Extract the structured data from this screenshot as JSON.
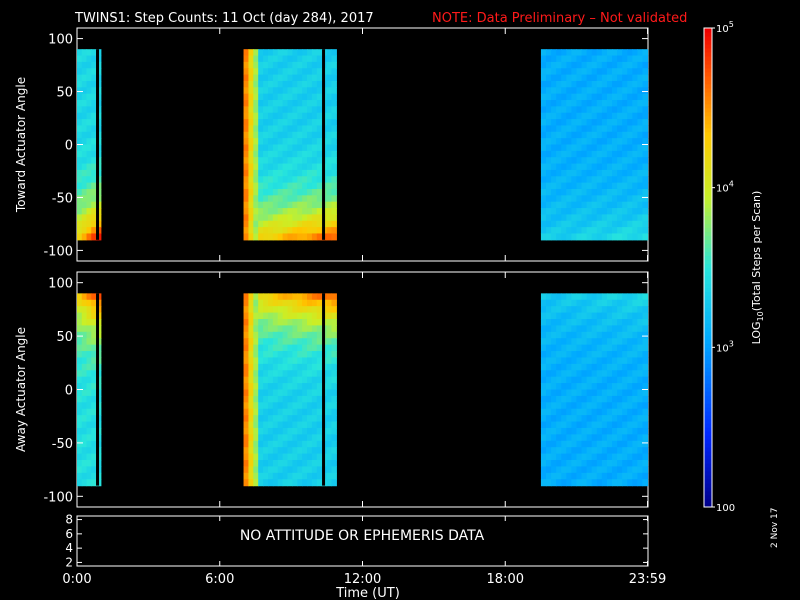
{
  "title": "TWINS1: Step Counts: 11 Oct (day 284), 2017",
  "note": "NOTE: Data Preliminary – Not validated",
  "side_date": "2 Nov 17",
  "colors": {
    "background": "#000000",
    "text": "#ffffff",
    "note": "#ff1a1a",
    "axis": "#ffffff"
  },
  "chart_data": [
    {
      "id": "toward",
      "type": "heatmap",
      "ylabel": "Toward Actuator Angle",
      "ylim": [
        -110,
        110
      ],
      "yticks": [
        100,
        50,
        0,
        -50,
        -100
      ],
      "xlim": [
        0,
        24
      ],
      "data_blocks": [
        {
          "start": 0.0,
          "end": 1.0,
          "base": 0.46,
          "ramp_to": "low",
          "ramp_strength": 0.5
        },
        {
          "start": 7.0,
          "end": 10.9,
          "base": 0.44,
          "ramp_to": "low",
          "ramp_strength": 0.45
        },
        {
          "start": 19.5,
          "end": 23.98,
          "base": 0.36,
          "ramp_to": "low",
          "ramp_strength": 0.12
        }
      ],
      "gaps": [
        0.8,
        10.3
      ]
    },
    {
      "id": "away",
      "type": "heatmap",
      "ylabel": "Away Actuator Angle",
      "ylim": [
        -110,
        110
      ],
      "yticks": [
        100,
        50,
        0,
        -50,
        -100
      ],
      "xlim": [
        0,
        24
      ],
      "data_blocks": [
        {
          "start": 0.0,
          "end": 1.0,
          "base": 0.48,
          "ramp_to": "high",
          "ramp_strength": 0.45
        },
        {
          "start": 7.0,
          "end": 10.9,
          "base": 0.44,
          "ramp_to": "high",
          "ramp_strength": 0.45
        },
        {
          "start": 19.5,
          "end": 23.98,
          "base": 0.36,
          "ramp_to": "high",
          "ramp_strength": 0.1
        }
      ],
      "gaps": [
        0.8,
        10.3
      ]
    },
    {
      "id": "ephemeris",
      "type": "line",
      "ylim": [
        1.5,
        8.5
      ],
      "yticks": [
        8,
        6,
        4,
        2
      ],
      "message": "NO ATTITUDE OR EPHEMERIS DATA"
    }
  ],
  "xaxis": {
    "label": "Time (UT)",
    "ticks": [
      {
        "value": 0,
        "label": "0:00"
      },
      {
        "value": 6,
        "label": "6:00"
      },
      {
        "value": 12,
        "label": "12:00"
      },
      {
        "value": 18,
        "label": "18:00"
      },
      {
        "value": 23.98,
        "label": "23:59"
      }
    ]
  },
  "colorbar": {
    "label": "LOG10(Total Steps per Scan)",
    "label_main": "LOG",
    "label_sub": "10",
    "label_rest": "(Total Steps per Scan)",
    "scale": "log",
    "range": [
      100,
      100000
    ],
    "ticks": [
      {
        "value": 100,
        "label": "100"
      },
      {
        "value": 1000,
        "label": "10^3",
        "base": "10",
        "exp": "3"
      },
      {
        "value": 10000,
        "label": "10^4",
        "base": "10",
        "exp": "4"
      },
      {
        "value": 100000,
        "label": "10^5",
        "base": "10",
        "exp": "5"
      }
    ]
  }
}
